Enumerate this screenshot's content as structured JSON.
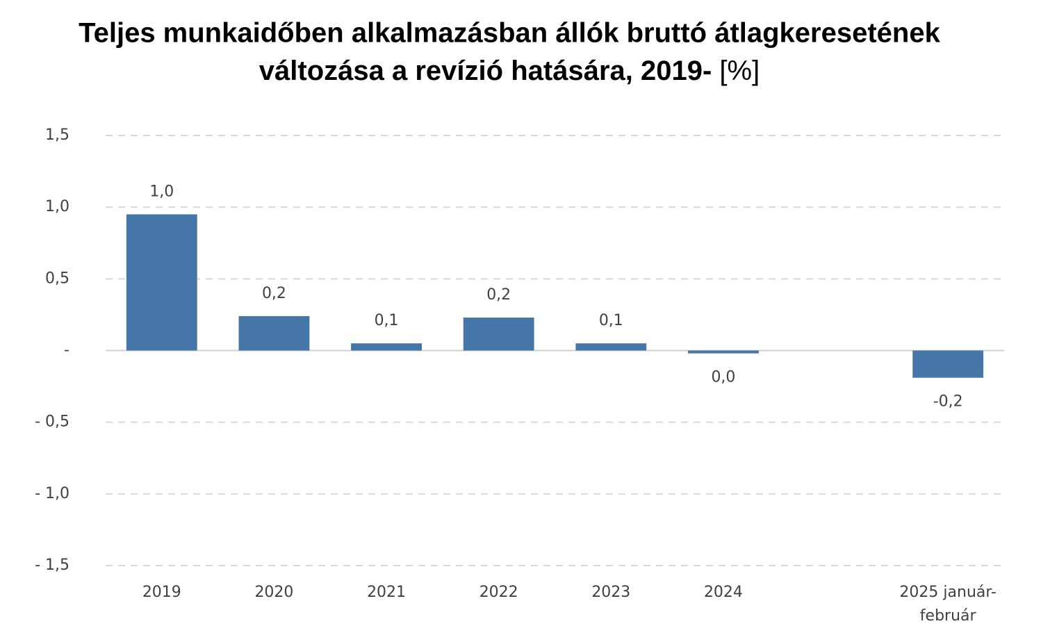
{
  "chart_data": {
    "type": "bar",
    "title": [
      "Teljes munkaidőben alkalmazásban állók bruttó átlagkeresetének",
      "változása a revízió hatására, 2019-"
    ],
    "unit": "[%]",
    "categories": [
      "2019",
      "2020",
      "2021",
      "2022",
      "2023",
      "2024",
      null,
      "2025 január-február"
    ],
    "values": [
      0.95,
      0.24,
      0.05,
      0.23,
      0.05,
      -0.02,
      null,
      -0.19
    ],
    "value_labels": [
      "1,0",
      "0,2",
      "0,1",
      "0,2",
      "0,1",
      "0,0",
      null,
      "-0,2"
    ],
    "color": "#4675a8",
    "ylim": [
      -1.5,
      1.5
    ],
    "yticks": [
      {
        "value": -1.5,
        "label": "- 1,5"
      },
      {
        "value": -1.0,
        "label": "- 1,0"
      },
      {
        "value": -0.5,
        "label": "- 0,5"
      },
      {
        "value": 0,
        "label": "-"
      },
      {
        "value": 0.5,
        "label": "0,5"
      },
      {
        "value": 1.0,
        "label": "1,0"
      },
      {
        "value": 1.5,
        "label": "1,5"
      }
    ],
    "grid": true
  }
}
